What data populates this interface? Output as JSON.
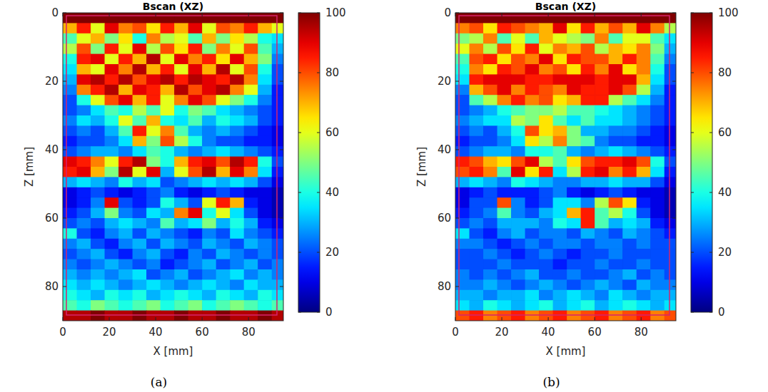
{
  "chart_data": [
    {
      "type": "heatmap",
      "title": "Bscan (XZ)",
      "x_label": "X [mm]",
      "y_label": "Z [mm]",
      "caption": "(a)",
      "xlim": [
        0,
        95
      ],
      "ylim": [
        0,
        90
      ],
      "xticks": [
        0,
        20,
        40,
        60,
        80
      ],
      "yticks": [
        0,
        20,
        40,
        60,
        80
      ],
      "colorbar": {
        "lim": [
          0,
          100
        ],
        "ticks": [
          0,
          20,
          40,
          60,
          80,
          100
        ]
      },
      "x_bins": [
        0,
        6,
        12,
        18,
        24,
        30,
        36,
        42,
        48,
        54,
        60,
        66,
        72,
        78,
        84,
        90,
        96
      ],
      "y_bins": [
        0,
        3,
        6,
        9,
        12,
        15,
        18,
        21,
        24,
        27,
        30,
        33,
        36,
        39,
        42,
        45,
        48,
        51,
        54,
        57,
        60,
        63,
        66,
        69,
        72,
        75,
        78,
        81,
        84,
        87,
        90
      ],
      "cells": [
        [
          100,
          100,
          100,
          100,
          100,
          100,
          100,
          100,
          100,
          100,
          100,
          100,
          100,
          100,
          100,
          100
        ],
        [
          70,
          85,
          60,
          90,
          75,
          80,
          65,
          85,
          70,
          90,
          60,
          80,
          75,
          85,
          70,
          60
        ],
        [
          45,
          60,
          70,
          50,
          65,
          40,
          75,
          55,
          60,
          45,
          70,
          50,
          65,
          55,
          40,
          35
        ],
        [
          55,
          80,
          50,
          85,
          60,
          90,
          55,
          80,
          65,
          85,
          50,
          75,
          60,
          80,
          45,
          30
        ],
        [
          40,
          85,
          90,
          60,
          85,
          70,
          95,
          60,
          90,
          75,
          85,
          65,
          90,
          70,
          50,
          25
        ],
        [
          35,
          70,
          60,
          90,
          75,
          95,
          70,
          85,
          60,
          90,
          70,
          95,
          60,
          80,
          40,
          20
        ],
        [
          30,
          90,
          95,
          85,
          95,
          80,
          90,
          95,
          85,
          95,
          90,
          85,
          95,
          75,
          35,
          20
        ],
        [
          25,
          75,
          85,
          95,
          70,
          90,
          85,
          70,
          95,
          80,
          90,
          95,
          75,
          60,
          30,
          15
        ],
        [
          20,
          40,
          60,
          80,
          90,
          70,
          85,
          60,
          75,
          90,
          80,
          60,
          50,
          40,
          25,
          15
        ],
        [
          20,
          25,
          35,
          45,
          40,
          55,
          45,
          60,
          40,
          50,
          45,
          35,
          30,
          25,
          20,
          15
        ],
        [
          25,
          35,
          30,
          40,
          60,
          45,
          70,
          40,
          35,
          45,
          30,
          40,
          35,
          30,
          20,
          15
        ],
        [
          20,
          25,
          20,
          30,
          45,
          85,
          60,
          75,
          45,
          30,
          25,
          30,
          25,
          20,
          15,
          10
        ],
        [
          15,
          20,
          20,
          25,
          35,
          70,
          50,
          80,
          55,
          40,
          25,
          20,
          20,
          15,
          15,
          10
        ],
        [
          20,
          25,
          30,
          30,
          25,
          35,
          45,
          40,
          30,
          25,
          30,
          35,
          30,
          25,
          20,
          15
        ],
        [
          90,
          85,
          75,
          60,
          85,
          95,
          50,
          40,
          70,
          85,
          90,
          80,
          95,
          85,
          40,
          20
        ],
        [
          85,
          90,
          70,
          50,
          95,
          60,
          90,
          30,
          60,
          80,
          95,
          70,
          90,
          75,
          35,
          15
        ],
        [
          30,
          35,
          30,
          25,
          40,
          30,
          35,
          20,
          25,
          30,
          35,
          30,
          35,
          30,
          20,
          10
        ],
        [
          10,
          15,
          20,
          15,
          10,
          15,
          20,
          25,
          15,
          10,
          15,
          20,
          15,
          10,
          10,
          5
        ],
        [
          10,
          15,
          25,
          90,
          20,
          15,
          20,
          40,
          30,
          20,
          60,
          85,
          70,
          15,
          10,
          5
        ],
        [
          15,
          20,
          30,
          50,
          25,
          20,
          35,
          30,
          75,
          90,
          40,
          60,
          35,
          20,
          10,
          5
        ],
        [
          20,
          25,
          20,
          30,
          35,
          30,
          25,
          45,
          30,
          35,
          50,
          30,
          40,
          30,
          15,
          10
        ],
        [
          40,
          20,
          15,
          25,
          30,
          20,
          30,
          25,
          20,
          15,
          25,
          20,
          35,
          25,
          20,
          15
        ],
        [
          25,
          30,
          20,
          15,
          25,
          30,
          20,
          30,
          25,
          20,
          30,
          25,
          20,
          30,
          25,
          20
        ],
        [
          20,
          25,
          30,
          20,
          15,
          25,
          30,
          20,
          15,
          25,
          20,
          30,
          25,
          20,
          25,
          20
        ],
        [
          25,
          20,
          25,
          30,
          25,
          20,
          25,
          15,
          20,
          25,
          30,
          20,
          25,
          30,
          20,
          25
        ],
        [
          30,
          25,
          30,
          25,
          30,
          35,
          20,
          25,
          30,
          20,
          25,
          30,
          35,
          25,
          30,
          25
        ],
        [
          35,
          30,
          35,
          30,
          25,
          30,
          35,
          30,
          25,
          30,
          35,
          30,
          25,
          35,
          30,
          30
        ],
        [
          40,
          35,
          30,
          40,
          35,
          40,
          30,
          35,
          40,
          35,
          30,
          40,
          35,
          30,
          40,
          35
        ],
        [
          45,
          40,
          50,
          45,
          40,
          45,
          50,
          40,
          45,
          50,
          40,
          45,
          50,
          45,
          40,
          45
        ],
        [
          95,
          95,
          100,
          95,
          95,
          100,
          95,
          95,
          100,
          95,
          95,
          100,
          95,
          95,
          100,
          95
        ]
      ]
    },
    {
      "type": "heatmap",
      "title": "Bscan (XZ)",
      "x_label": "X [mm]",
      "y_label": "Z [mm]",
      "caption": "(b)",
      "xlim": [
        0,
        95
      ],
      "ylim": [
        0,
        90
      ],
      "xticks": [
        0,
        20,
        40,
        60,
        80
      ],
      "yticks": [
        0,
        20,
        40,
        60,
        80
      ],
      "colorbar": {
        "lim": [
          0,
          100
        ],
        "ticks": [
          0,
          20,
          40,
          60,
          80,
          100
        ]
      },
      "x_bins": [
        0,
        6,
        12,
        18,
        24,
        30,
        36,
        42,
        48,
        54,
        60,
        66,
        72,
        78,
        84,
        90,
        96
      ],
      "y_bins": [
        0,
        3,
        6,
        9,
        12,
        15,
        18,
        21,
        24,
        27,
        30,
        33,
        36,
        39,
        42,
        45,
        48,
        51,
        54,
        57,
        60,
        63,
        66,
        69,
        72,
        75,
        78,
        81,
        84,
        87,
        90
      ],
      "cells": [
        [
          100,
          100,
          100,
          100,
          100,
          100,
          100,
          100,
          100,
          100,
          100,
          100,
          100,
          100,
          100,
          100
        ],
        [
          75,
          80,
          65,
          85,
          80,
          75,
          70,
          90,
          65,
          85,
          70,
          80,
          70,
          90,
          75,
          55
        ],
        [
          50,
          55,
          75,
          45,
          60,
          45,
          70,
          60,
          55,
          50,
          75,
          45,
          60,
          60,
          45,
          35
        ],
        [
          60,
          75,
          55,
          80,
          65,
          85,
          60,
          75,
          70,
          80,
          55,
          70,
          65,
          75,
          50,
          30
        ],
        [
          45,
          80,
          85,
          65,
          80,
          75,
          90,
          65,
          85,
          80,
          80,
          70,
          85,
          75,
          45,
          25
        ],
        [
          40,
          75,
          65,
          85,
          80,
          90,
          75,
          80,
          65,
          85,
          75,
          90,
          65,
          75,
          40,
          20
        ],
        [
          35,
          85,
          90,
          90,
          90,
          85,
          85,
          90,
          90,
          90,
          85,
          90,
          90,
          70,
          35,
          20
        ],
        [
          25,
          70,
          80,
          90,
          75,
          85,
          80,
          75,
          90,
          85,
          85,
          90,
          80,
          55,
          30,
          15
        ],
        [
          20,
          45,
          55,
          75,
          85,
          75,
          80,
          65,
          70,
          85,
          85,
          55,
          45,
          35,
          25,
          15
        ],
        [
          20,
          25,
          30,
          40,
          45,
          50,
          50,
          55,
          45,
          45,
          40,
          35,
          30,
          25,
          20,
          15
        ],
        [
          25,
          30,
          35,
          35,
          55,
          50,
          65,
          45,
          35,
          45,
          35,
          35,
          30,
          25,
          20,
          15
        ],
        [
          20,
          25,
          20,
          30,
          40,
          80,
          65,
          70,
          50,
          30,
          30,
          25,
          25,
          20,
          15,
          10
        ],
        [
          15,
          20,
          20,
          25,
          35,
          65,
          55,
          75,
          50,
          45,
          25,
          20,
          20,
          15,
          15,
          10
        ],
        [
          20,
          25,
          30,
          30,
          25,
          40,
          40,
          45,
          30,
          25,
          30,
          35,
          30,
          25,
          20,
          15
        ],
        [
          85,
          80,
          70,
          65,
          80,
          90,
          55,
          45,
          65,
          80,
          85,
          85,
          90,
          80,
          40,
          20
        ],
        [
          80,
          85,
          75,
          45,
          90,
          65,
          85,
          35,
          55,
          85,
          90,
          75,
          85,
          70,
          35,
          15
        ],
        [
          30,
          35,
          30,
          25,
          40,
          35,
          30,
          25,
          25,
          30,
          30,
          35,
          30,
          30,
          20,
          10
        ],
        [
          10,
          15,
          20,
          15,
          15,
          15,
          20,
          25,
          15,
          10,
          15,
          20,
          15,
          10,
          10,
          5
        ],
        [
          10,
          20,
          20,
          80,
          25,
          15,
          20,
          35,
          35,
          25,
          55,
          80,
          65,
          15,
          10,
          5
        ],
        [
          15,
          20,
          25,
          45,
          25,
          20,
          30,
          35,
          70,
          85,
          45,
          55,
          40,
          20,
          10,
          5
        ],
        [
          20,
          25,
          20,
          30,
          30,
          30,
          25,
          40,
          35,
          85,
          45,
          30,
          35,
          30,
          15,
          10
        ],
        [
          35,
          20,
          15,
          25,
          30,
          20,
          25,
          25,
          20,
          30,
          25,
          20,
          30,
          25,
          20,
          15
        ],
        [
          25,
          25,
          20,
          15,
          20,
          25,
          20,
          25,
          25,
          20,
          25,
          25,
          20,
          25,
          20,
          20
        ],
        [
          20,
          20,
          25,
          20,
          15,
          20,
          25,
          20,
          15,
          20,
          20,
          25,
          20,
          20,
          20,
          20
        ],
        [
          20,
          20,
          20,
          25,
          20,
          20,
          20,
          15,
          20,
          20,
          25,
          20,
          20,
          25,
          20,
          20
        ],
        [
          25,
          20,
          25,
          20,
          25,
          30,
          20,
          20,
          25,
          20,
          20,
          25,
          30,
          20,
          25,
          20
        ],
        [
          25,
          25,
          30,
          25,
          20,
          25,
          30,
          25,
          20,
          25,
          30,
          25,
          20,
          30,
          25,
          25
        ],
        [
          30,
          30,
          25,
          30,
          30,
          35,
          25,
          30,
          35,
          30,
          25,
          35,
          30,
          25,
          30,
          30
        ],
        [
          35,
          30,
          40,
          35,
          30,
          35,
          40,
          30,
          35,
          40,
          30,
          35,
          40,
          35,
          30,
          35
        ],
        [
          80,
          85,
          75,
          80,
          85,
          75,
          80,
          85,
          75,
          80,
          85,
          75,
          80,
          85,
          75,
          80
        ]
      ]
    }
  ]
}
